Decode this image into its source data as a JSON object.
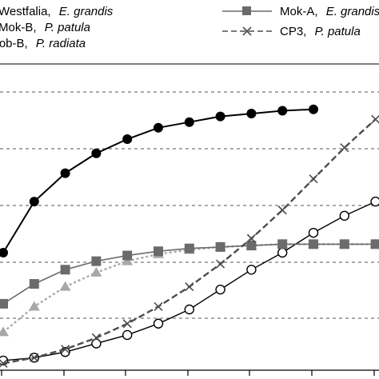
{
  "chart_data": {
    "type": "line",
    "title": "",
    "xlabel": "",
    "ylabel": "",
    "grid": "horizontal dashed",
    "legend_position": "top",
    "series": [
      {
        "name_parts": [
          "Westfalia,",
          "E. grandis"
        ],
        "style": "solid line, filled circle markers",
        "color": "#000000",
        "points": [
          [
            1,
            40
          ],
          [
            2,
            58
          ],
          [
            3,
            68
          ],
          [
            4,
            75
          ],
          [
            5,
            80
          ],
          [
            6,
            84
          ],
          [
            7,
            86
          ],
          [
            8,
            88
          ],
          [
            9,
            89
          ],
          [
            10,
            90
          ],
          [
            11,
            90.5
          ]
        ]
      },
      {
        "name_parts": [
          "Mok-B,",
          "P. patula"
        ],
        "style": "dashed light grey line, triangle markers",
        "color": "#a8a8a8",
        "points": [
          [
            1,
            12
          ],
          [
            2,
            21
          ],
          [
            3,
            28
          ],
          [
            4,
            33
          ],
          [
            5,
            37
          ],
          [
            6,
            39.5
          ],
          [
            7,
            41
          ],
          [
            8,
            42
          ],
          [
            9,
            42.5
          ],
          [
            10,
            43
          ],
          [
            11,
            43
          ],
          [
            12,
            43
          ],
          [
            13,
            43
          ]
        ]
      },
      {
        "name_parts": [
          "Rob-B,",
          "P. radiata"
        ],
        "style": "solid line, open circle markers",
        "color": "#000000",
        "points": [
          [
            1,
            2
          ],
          [
            2,
            3
          ],
          [
            3,
            5
          ],
          [
            4,
            8
          ],
          [
            5,
            11
          ],
          [
            6,
            15
          ],
          [
            7,
            20
          ],
          [
            8,
            27
          ],
          [
            9,
            34
          ],
          [
            10,
            40
          ],
          [
            11,
            47
          ],
          [
            12,
            53
          ],
          [
            13,
            58
          ]
        ]
      },
      {
        "name_parts": [
          "Mok-A,",
          "E. grandis"
        ],
        "style": "solid grey line, filled square markers",
        "color": "#6b6b6b",
        "points": [
          [
            1,
            22
          ],
          [
            2,
            29
          ],
          [
            3,
            34
          ],
          [
            4,
            37
          ],
          [
            5,
            39
          ],
          [
            6,
            40.5
          ],
          [
            7,
            41.5
          ],
          [
            8,
            42
          ],
          [
            9,
            42.5
          ],
          [
            10,
            43
          ],
          [
            11,
            43
          ],
          [
            12,
            43
          ],
          [
            13,
            43
          ]
        ]
      },
      {
        "name_parts": [
          "CP3,",
          "P. patula"
        ],
        "style": "dashed grey line, x markers",
        "color": "#4d4d4d",
        "points": [
          [
            1,
            1
          ],
          [
            2,
            3
          ],
          [
            3,
            6
          ],
          [
            4,
            10
          ],
          [
            5,
            15
          ],
          [
            6,
            21
          ],
          [
            7,
            28
          ],
          [
            8,
            36
          ],
          [
            9,
            45
          ],
          [
            10,
            55
          ],
          [
            11,
            66
          ],
          [
            12,
            77
          ],
          [
            13,
            87
          ]
        ]
      }
    ],
    "axis_ranges": {
      "x": [
        0,
        13
      ],
      "y": [
        0,
        100
      ]
    }
  }
}
